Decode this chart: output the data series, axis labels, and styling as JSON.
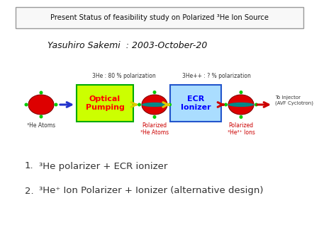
{
  "title": "Present Status of feasibility study on Polarized ³He Ion Source",
  "subtitle": "Yasuhiro Sakemi  : 2003-October-20",
  "label_3he_atoms": "³He Atoms",
  "label_pol_he_atoms": "Polarized\n³He Atoms",
  "label_pol_he_ions": "Polarized\n³He²⁺ Ions",
  "label_to_injector": "To Injector\n(AVF Cyclotron)",
  "label_3he_80": "3He : 80 % polarization",
  "label_3hepp": "3He++ : ? % polarization",
  "box1_label": "Optical\nPumping",
  "box2_label": "ECR\nIonizer",
  "item1_num": "1.",
  "item1_text": "³He polarizer + ECR ionizer",
  "item2_num": "2.",
  "item2_text": "³He⁺ Ion Polarizer + Ionizer (alternative design)",
  "bg_color": "#ffffff",
  "title_box_edge": "#999999",
  "title_box_fill": "#f8f8f8",
  "box1_fill": "#ccff00",
  "box1_edge": "#00aa00",
  "box2_fill": "#aaddff",
  "box2_edge": "#2255cc",
  "red_ellipse": "#dd0000",
  "red_ellipse_edge": "#880000",
  "green_dot": "#00cc00",
  "teal_stripe": "#008888",
  "yellow_arrow": "#ddcc00",
  "red_arrow": "#cc0000",
  "blue_arrow": "#2233cc",
  "label_color_red": "#cc0000",
  "label_color_black": "#111111",
  "label_color_dark": "#333333"
}
